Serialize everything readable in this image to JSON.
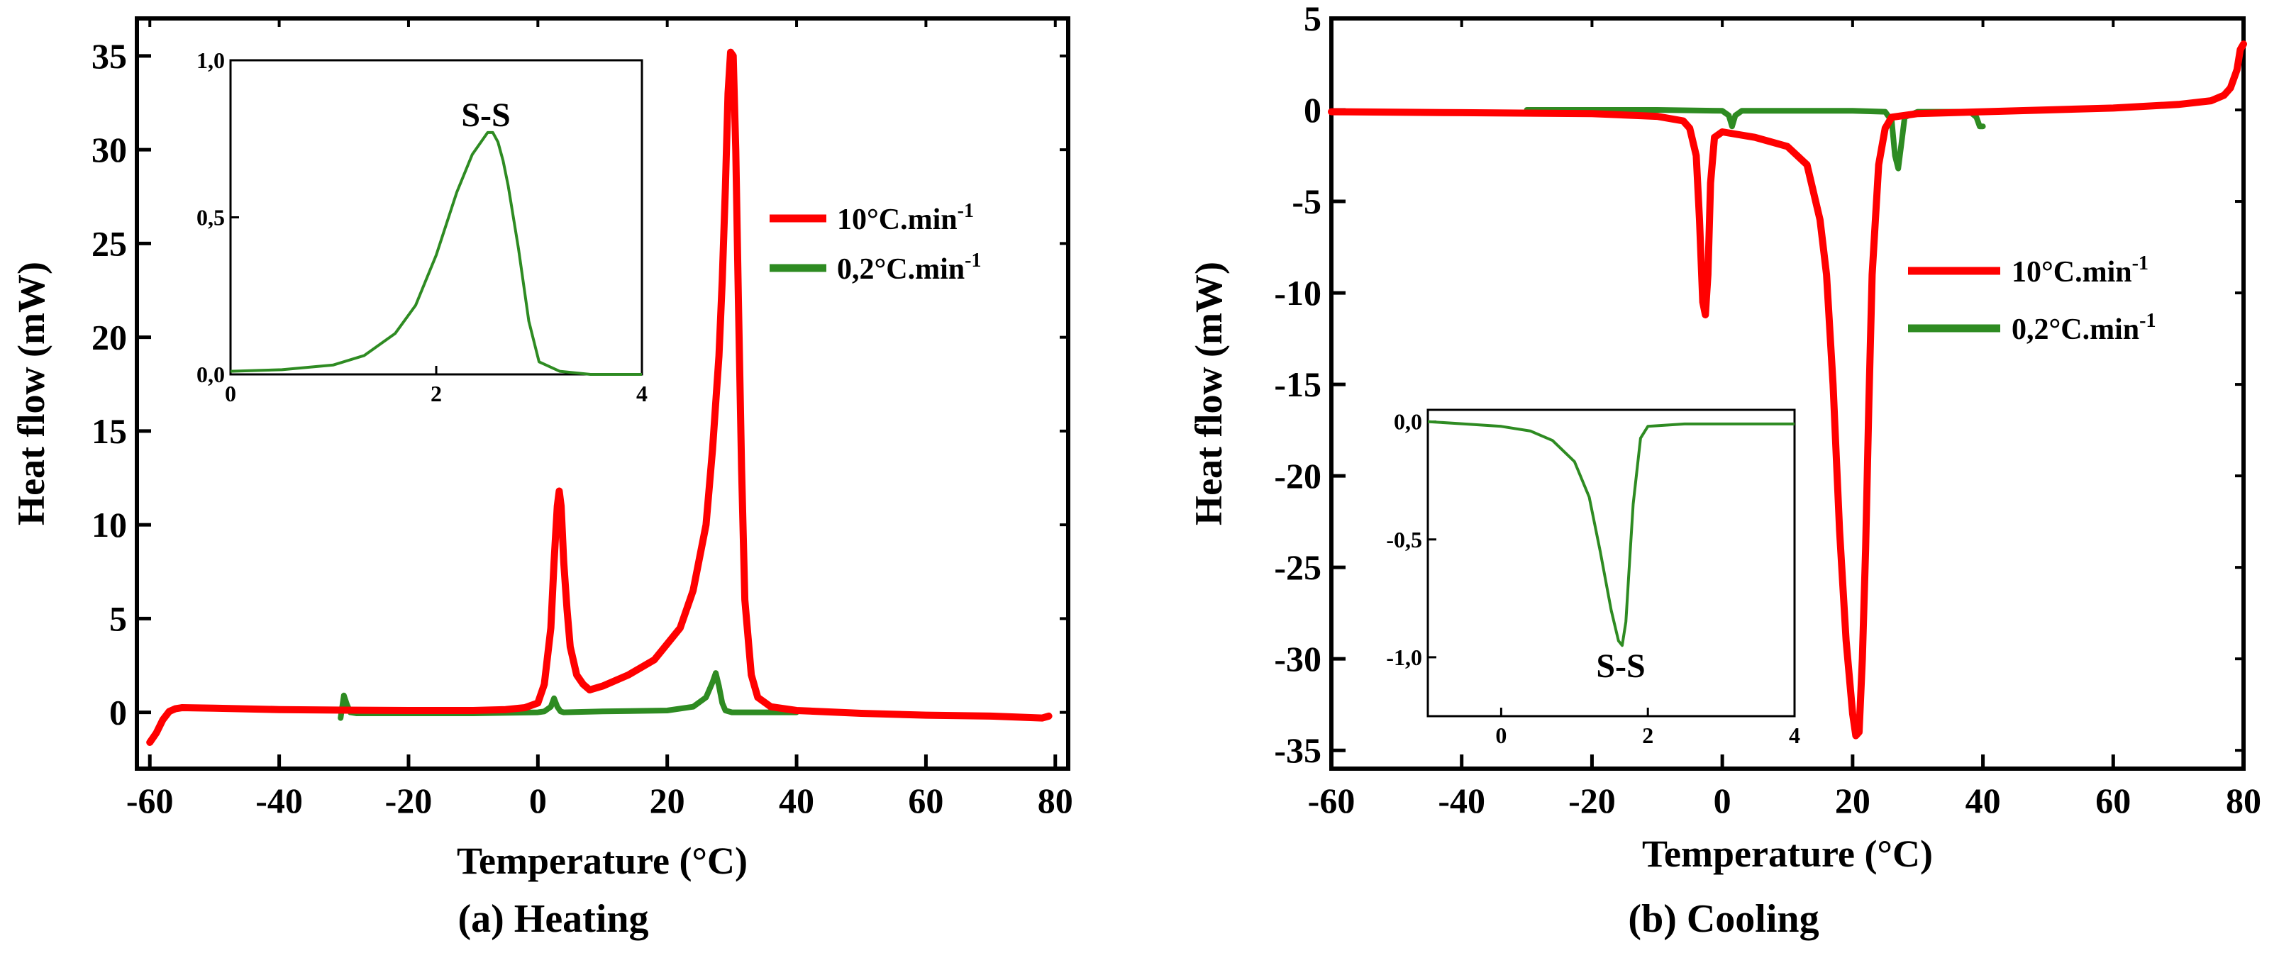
{
  "chart_data": [
    {
      "panel": "a",
      "type": "line",
      "caption": "(a) Heating",
      "xlabel": "Temperature (°C)",
      "ylabel": "Heat flow (mW)",
      "xlim": [
        -62,
        82
      ],
      "ylim": [
        -3,
        37
      ],
      "xticks": [
        -60,
        -40,
        -20,
        0,
        20,
        40,
        60,
        80
      ],
      "xtick_labels": [
        "-60",
        "-40",
        "-20",
        "0",
        "20",
        "40",
        "60",
        "80"
      ],
      "yticks": [
        0,
        5,
        10,
        15,
        20,
        25,
        30,
        35
      ],
      "ytick_labels": [
        "0",
        "5",
        "10",
        "15",
        "20",
        "25",
        "30",
        "35"
      ],
      "legend": {
        "position": "center-right",
        "entries": [
          {
            "label": "10°C.min",
            "sup": "-1",
            "color": "#ff0000"
          },
          {
            "label": "0,2°C.min",
            "sup": "-1",
            "color": "#2e8b22"
          }
        ]
      },
      "series": [
        {
          "name": "10°C.min-1",
          "color": "#ff0000",
          "x": [
            -60,
            -59,
            -58,
            -57,
            -56,
            -55,
            -50,
            -40,
            -30,
            -20,
            -10,
            -5,
            -2,
            0,
            1,
            2,
            2.5,
            3,
            3.3,
            3.6,
            4,
            4.5,
            5,
            6,
            7,
            8,
            10,
            14,
            18,
            22,
            24,
            26,
            27,
            28,
            28.5,
            29,
            29.4,
            29.8,
            30.2,
            30.6,
            31,
            31.5,
            32,
            33,
            34,
            36,
            40,
            50,
            60,
            70,
            78,
            79
          ],
          "y": [
            -1.6,
            -1.1,
            -0.4,
            0.05,
            0.2,
            0.25,
            0.22,
            0.15,
            0.12,
            0.1,
            0.1,
            0.15,
            0.25,
            0.5,
            1.5,
            4.5,
            8,
            11,
            11.8,
            11,
            8,
            5.5,
            3.5,
            2,
            1.5,
            1.2,
            1.4,
            2,
            2.8,
            4.5,
            6.5,
            10,
            14,
            19,
            23,
            28,
            33,
            35.2,
            35,
            30,
            22,
            13,
            6,
            2,
            0.8,
            0.3,
            0.1,
            -0.05,
            -0.15,
            -0.2,
            -0.3,
            -0.2
          ]
        },
        {
          "name": "0,2°C.min-1",
          "color": "#2e8b22",
          "x": [
            -30.5,
            -30,
            -29.5,
            -29,
            -28,
            -20,
            -10,
            0,
            1,
            2,
            2.5,
            3,
            3.5,
            4,
            10,
            20,
            24,
            26,
            27,
            27.5,
            28,
            28.5,
            29,
            30,
            35,
            40
          ],
          "y": [
            -0.3,
            0.9,
            0.4,
            0,
            -0.05,
            -0.05,
            -0.05,
            0,
            0.05,
            0.3,
            0.75,
            0.3,
            0.05,
            0,
            0.05,
            0.1,
            0.3,
            0.8,
            1.6,
            2.1,
            1.4,
            0.5,
            0.1,
            0,
            0,
            0
          ]
        }
      ],
      "inset": {
        "label": "S-S",
        "xlim": [
          0,
          4
        ],
        "ylim": [
          0,
          1
        ],
        "xticks": [
          0,
          2,
          4
        ],
        "xtick_labels": [
          "0",
          "2",
          "4"
        ],
        "yticks": [
          0,
          0.5,
          1
        ],
        "ytick_labels": [
          "0,0",
          "0,5",
          "1,0"
        ],
        "series": {
          "color": "#2e8b22",
          "x": [
            0,
            0.5,
            1,
            1.3,
            1.6,
            1.8,
            2,
            2.2,
            2.35,
            2.5,
            2.55,
            2.6,
            2.65,
            2.7,
            2.8,
            2.9,
            3,
            3.2,
            3.5,
            4
          ],
          "y": [
            0.01,
            0.015,
            0.03,
            0.06,
            0.13,
            0.22,
            0.38,
            0.58,
            0.7,
            0.77,
            0.77,
            0.74,
            0.68,
            0.6,
            0.4,
            0.17,
            0.04,
            0.01,
            0,
            0
          ]
        }
      }
    },
    {
      "panel": "b",
      "type": "line",
      "caption": "(b) Cooling",
      "xlabel": "Temperature (°C)",
      "ylabel": "Heat flow (mW)",
      "xlim": [
        -60,
        80
      ],
      "ylim": [
        -36,
        5
      ],
      "xticks": [
        -60,
        -40,
        -20,
        0,
        20,
        40,
        60,
        80
      ],
      "xtick_labels": [
        "-60",
        "-40",
        "-20",
        "0",
        "20",
        "40",
        "60",
        "80"
      ],
      "yticks": [
        5,
        0,
        -5,
        -10,
        -15,
        -20,
        -25,
        -30,
        -35
      ],
      "ytick_labels": [
        "5",
        "0",
        "-5",
        "-10",
        "-15",
        "-20",
        "-25",
        "-30",
        "-35"
      ],
      "legend": {
        "position": "center-right",
        "entries": [
          {
            "label": "10°C.min",
            "sup": "-1",
            "color": "#ff0000"
          },
          {
            "label": "0,2°C.min",
            "sup": "-1",
            "color": "#2e8b22"
          }
        ]
      },
      "series": [
        {
          "name": "10°C.min-1",
          "color": "#ff0000",
          "x": [
            -60,
            -40,
            -20,
            -10,
            -6,
            -5,
            -4,
            -3.5,
            -3,
            -2.6,
            -2.2,
            -1.8,
            -1.2,
            0,
            5,
            10,
            13,
            15,
            16,
            17,
            18,
            19,
            20,
            20.5,
            21,
            21.5,
            22,
            22.5,
            23,
            24,
            25,
            26,
            30,
            40,
            60,
            70,
            75,
            77,
            78,
            79,
            79.5,
            80
          ],
          "y": [
            -0.1,
            -0.15,
            -0.2,
            -0.35,
            -0.6,
            -1,
            -2.5,
            -6,
            -10.5,
            -11.2,
            -9,
            -4,
            -1.5,
            -1.2,
            -1.5,
            -2,
            -3,
            -6,
            -9,
            -15,
            -23,
            -29,
            -33,
            -34.2,
            -34,
            -30,
            -24,
            -16,
            -9,
            -3,
            -1,
            -0.4,
            -0.2,
            -0.1,
            0.1,
            0.3,
            0.5,
            0.8,
            1.2,
            2.2,
            3.3,
            3.6
          ]
        },
        {
          "name": "0,2°C.min-1",
          "color": "#2e8b22",
          "x": [
            -30,
            -10,
            0,
            1,
            1.5,
            2,
            3,
            10,
            20,
            25,
            26,
            26.5,
            27,
            27.5,
            28,
            30,
            35,
            38,
            39,
            39.5,
            40
          ],
          "y": [
            0,
            0,
            -0.05,
            -0.3,
            -0.9,
            -0.3,
            -0.05,
            -0.05,
            -0.05,
            -0.1,
            -0.6,
            -2.5,
            -3.2,
            -1.8,
            -0.4,
            -0.1,
            -0.1,
            -0.1,
            -0.4,
            -0.9,
            -0.9
          ]
        }
      ],
      "inset": {
        "label": "S-S",
        "xlim": [
          -1,
          4
        ],
        "ylim": [
          -1.25,
          0.05
        ],
        "xticks": [
          0,
          2,
          4
        ],
        "xtick_labels": [
          "0",
          "2",
          "4"
        ],
        "yticks": [
          0,
          -0.5,
          -1
        ],
        "ytick_labels": [
          "0,0",
          "-0,5",
          "-1,0"
        ],
        "series": {
          "color": "#2e8b22",
          "x": [
            -1,
            -0.5,
            0,
            0.4,
            0.7,
            1,
            1.2,
            1.35,
            1.5,
            1.6,
            1.65,
            1.7,
            1.75,
            1.8,
            1.9,
            2,
            2.5,
            3,
            4
          ],
          "y": [
            0,
            -0.01,
            -0.02,
            -0.04,
            -0.08,
            -0.17,
            -0.32,
            -0.55,
            -0.8,
            -0.93,
            -0.95,
            -0.85,
            -0.6,
            -0.35,
            -0.07,
            -0.02,
            -0.01,
            -0.01,
            -0.01
          ]
        }
      }
    }
  ]
}
